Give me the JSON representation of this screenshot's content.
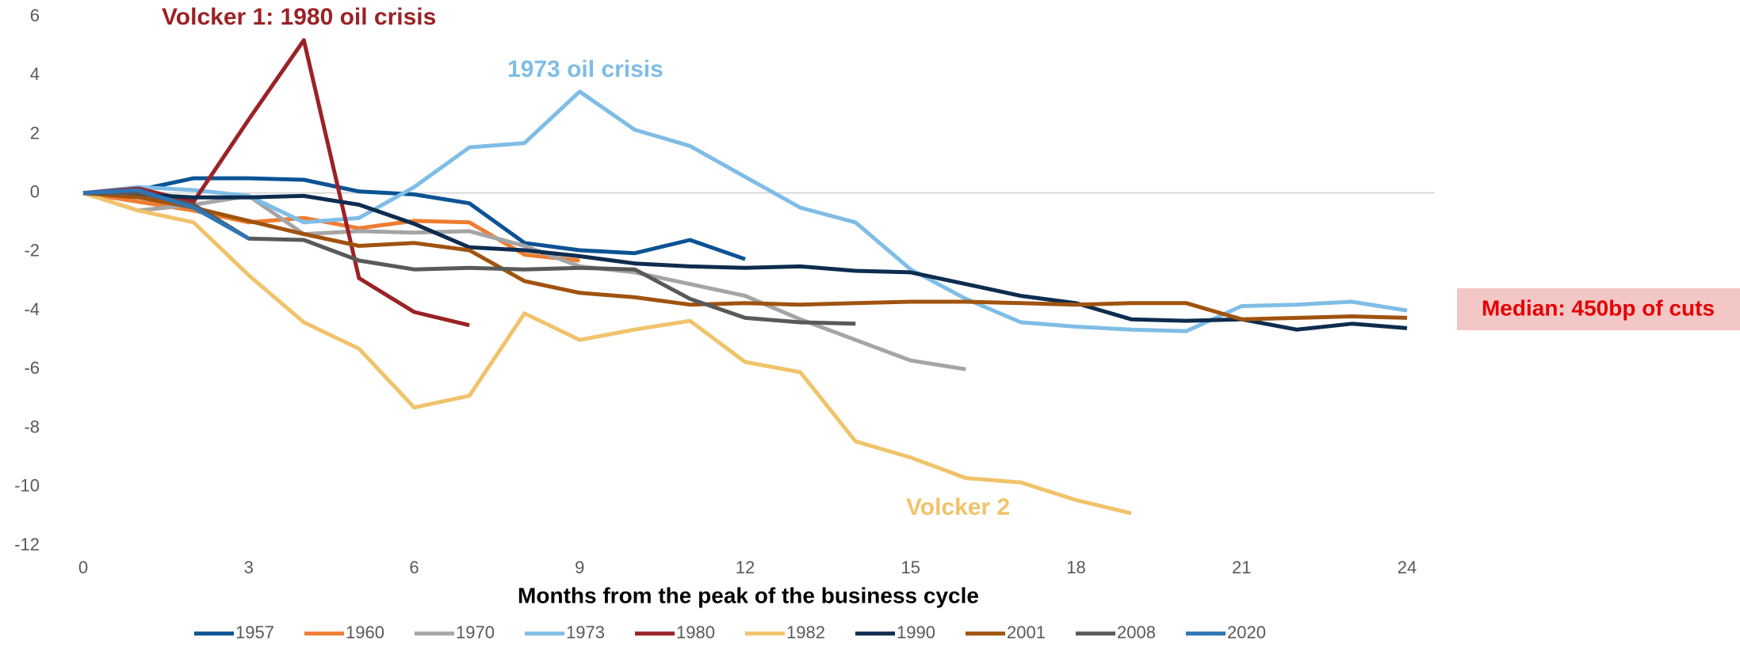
{
  "chart_data": {
    "type": "line",
    "xlabel": "Months from the peak of the business cycle",
    "annotations": [
      "Volcker 1: 1980 oil crisis",
      "1973 oil crisis",
      "Volcker 2",
      "Median: 450bp of cuts"
    ],
    "x": [
      0,
      1,
      2,
      3,
      4,
      5,
      6,
      7,
      8,
      9,
      10,
      11,
      12,
      13,
      14,
      15,
      16,
      17,
      18,
      19,
      20,
      21,
      22,
      23,
      24
    ],
    "xlim": [
      0,
      24
    ],
    "xticks": [
      0,
      3,
      6,
      9,
      12,
      15,
      18,
      21,
      24
    ],
    "ylim": [
      -12,
      6
    ],
    "yticks": [
      -12,
      -10,
      -8,
      -6,
      -4,
      -2,
      0,
      2,
      4,
      6
    ],
    "zero_line": true,
    "legend": "bottom",
    "series": [
      {
        "name": "1957",
        "color": "#0b5394",
        "values": [
          0,
          0.1,
          0.5,
          0.5,
          0.45,
          0.05,
          -0.05,
          -0.35,
          -1.7,
          -1.95,
          -2.05,
          -1.6,
          -2.25,
          null,
          null,
          null,
          null,
          null,
          null,
          null,
          null,
          null,
          null,
          null,
          null
        ]
      },
      {
        "name": "1960",
        "color": "#ed7d31",
        "values": [
          0,
          -0.3,
          -0.6,
          -1.0,
          -0.85,
          -1.2,
          -0.95,
          -1.0,
          -2.1,
          -2.3,
          null,
          null,
          null,
          null,
          null,
          null,
          null,
          null,
          null,
          null,
          null,
          null,
          null,
          null,
          null
        ]
      },
      {
        "name": "1970",
        "color": "#a5a5a5",
        "values": [
          0,
          -0.6,
          -0.4,
          -0.1,
          -1.4,
          -1.3,
          -1.35,
          -1.3,
          -1.8,
          -2.5,
          -2.7,
          -3.1,
          -3.5,
          -4.3,
          -5.0,
          -5.7,
          -6.0,
          null,
          null,
          null,
          null,
          null,
          null,
          null,
          null
        ]
      },
      {
        "name": "1973",
        "color": "#7fbde6",
        "values": [
          0,
          0.2,
          0.1,
          -0.1,
          -1.0,
          -0.85,
          0.2,
          1.55,
          1.7,
          3.45,
          2.15,
          1.6,
          0.55,
          -0.5,
          -1.0,
          -2.6,
          -3.6,
          -4.4,
          -4.55,
          -4.65,
          -4.7,
          -3.85,
          -3.8,
          -3.7,
          -4.0
        ]
      },
      {
        "name": "1980",
        "color": "#9b2226",
        "values": [
          0,
          0.15,
          -0.3,
          2.5,
          5.2,
          -2.9,
          -4.05,
          -4.5,
          null,
          null,
          null,
          null,
          null,
          null,
          null,
          null,
          null,
          null,
          null,
          null,
          null,
          null,
          null,
          null,
          null
        ]
      },
      {
        "name": "1982",
        "color": "#f0c36b",
        "values": [
          0,
          -0.6,
          -1.0,
          -2.8,
          -4.4,
          -5.3,
          -7.3,
          -6.9,
          -4.1,
          -5.0,
          -4.65,
          -4.35,
          -5.75,
          -6.1,
          -8.45,
          -9.0,
          -9.7,
          -9.85,
          -10.45,
          -10.9,
          null,
          null,
          null,
          null,
          null
        ]
      },
      {
        "name": "1990",
        "color": "#0d2c4f",
        "values": [
          0,
          -0.05,
          -0.15,
          -0.15,
          -0.1,
          -0.4,
          -1.05,
          -1.85,
          -1.95,
          -2.15,
          -2.4,
          -2.5,
          -2.55,
          -2.5,
          -2.65,
          -2.7,
          -3.1,
          -3.5,
          -3.75,
          -4.3,
          -4.35,
          -4.3,
          -4.65,
          -4.45,
          -4.6
        ]
      },
      {
        "name": "2001",
        "color": "#a0530f",
        "values": [
          0,
          -0.15,
          -0.5,
          -0.95,
          -1.4,
          -1.8,
          -1.7,
          -1.95,
          -3.0,
          -3.4,
          -3.55,
          -3.8,
          -3.75,
          -3.8,
          -3.75,
          -3.7,
          -3.7,
          -3.75,
          -3.8,
          -3.75,
          -3.75,
          -4.3,
          -4.25,
          -4.2,
          -4.25
        ]
      },
      {
        "name": "2008",
        "color": "#595959",
        "values": [
          0,
          0,
          -0.4,
          -1.55,
          -1.6,
          -2.3,
          -2.6,
          -2.55,
          -2.6,
          -2.55,
          -2.6,
          -3.6,
          -4.25,
          -4.4,
          -4.45,
          null,
          null,
          null,
          null,
          null,
          null,
          null,
          null,
          null,
          null
        ]
      },
      {
        "name": "2020",
        "color": "#2e75b6",
        "values": [
          0,
          0.1,
          -0.5,
          -1.55,
          null,
          null,
          null,
          null,
          null,
          null,
          null,
          null,
          null,
          null,
          null,
          null,
          null,
          null,
          null,
          null,
          null,
          null,
          null,
          null,
          null
        ]
      }
    ]
  }
}
